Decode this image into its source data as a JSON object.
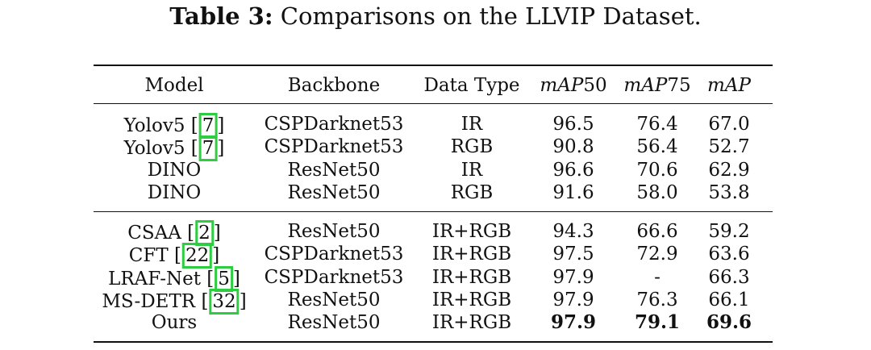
{
  "caption": {
    "label": "Table 3:",
    "text": "Comparisons on the LLVIP Dataset."
  },
  "table": {
    "headers": {
      "model": "Model",
      "backbone": "Backbone",
      "data_type": "Data Type",
      "map50_prefix": "mAP",
      "map50_suffix": "50",
      "map75_prefix": "mAP",
      "map75_suffix": "75",
      "map": "mAP"
    },
    "groups": [
      {
        "rows": [
          {
            "model": "Yolov5",
            "cite": "7",
            "backbone": "CSPDarknet53",
            "data_type": "IR",
            "map50": "96.5",
            "map75": "76.4",
            "map": "67.0",
            "bold": false
          },
          {
            "model": "Yolov5",
            "cite": "7",
            "backbone": "CSPDarknet53",
            "data_type": "RGB",
            "map50": "90.8",
            "map75": "56.4",
            "map": "52.7",
            "bold": false
          },
          {
            "model": "DINO",
            "cite": "",
            "backbone": "ResNet50",
            "data_type": "IR",
            "map50": "96.6",
            "map75": "70.6",
            "map": "62.9",
            "bold": false
          },
          {
            "model": "DINO",
            "cite": "",
            "backbone": "ResNet50",
            "data_type": "RGB",
            "map50": "91.6",
            "map75": "58.0",
            "map": "53.8",
            "bold": false
          }
        ]
      },
      {
        "rows": [
          {
            "model": "CSAA",
            "cite": "2",
            "backbone": "ResNet50",
            "data_type": "IR+RGB",
            "map50": "94.3",
            "map75": "66.6",
            "map": "59.2",
            "bold": false
          },
          {
            "model": "CFT",
            "cite": "22",
            "backbone": "CSPDarknet53",
            "data_type": "IR+RGB",
            "map50": "97.5",
            "map75": "72.9",
            "map": "63.6",
            "bold": false
          },
          {
            "model": "LRAF-Net",
            "cite": "5",
            "backbone": "CSPDarknet53",
            "data_type": "IR+RGB",
            "map50": "97.9",
            "map75": "-",
            "map": "66.3",
            "bold": false
          },
          {
            "model": "MS-DETR",
            "cite": "32",
            "backbone": "ResNet50",
            "data_type": "IR+RGB",
            "map50": "97.9",
            "map75": "76.3",
            "map": "66.1",
            "bold": false
          },
          {
            "model": "Ours",
            "cite": "",
            "backbone": "ResNet50",
            "data_type": "IR+RGB",
            "map50": "97.9",
            "map75": "79.1",
            "map": "69.6",
            "bold": true
          }
        ]
      }
    ]
  }
}
